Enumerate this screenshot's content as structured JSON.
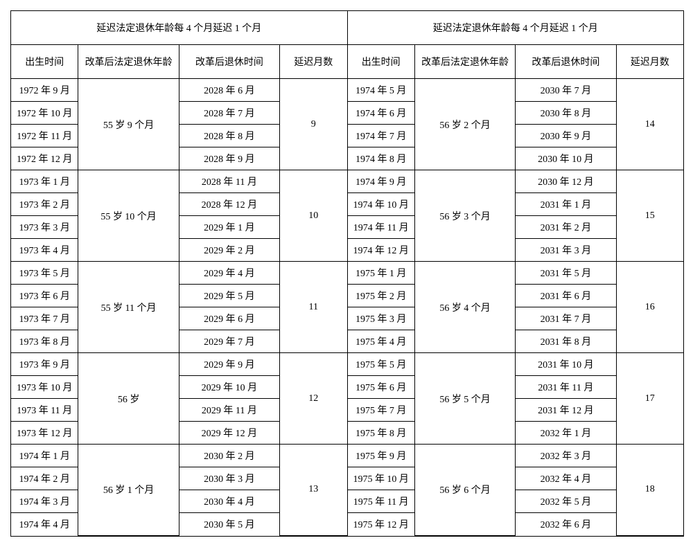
{
  "title": "延迟法定退休年龄每 4 个月延迟 1 个月",
  "columns": {
    "birth": "出生时间",
    "age": "改革后法定退休年龄",
    "retire": "改革后退休时间",
    "delay": "延迟月数"
  },
  "left_groups": [
    {
      "age": "55 岁 9 个月",
      "delay": "9",
      "rows": [
        {
          "birth": "1972 年 9 月",
          "retire": "2028 年 6 月"
        },
        {
          "birth": "1972 年 10 月",
          "retire": "2028 年 7 月"
        },
        {
          "birth": "1972 年 11 月",
          "retire": "2028 年 8 月"
        },
        {
          "birth": "1972 年 12 月",
          "retire": "2028 年 9 月"
        }
      ]
    },
    {
      "age": "55 岁 10 个月",
      "delay": "10",
      "rows": [
        {
          "birth": "1973 年 1 月",
          "retire": "2028 年 11 月"
        },
        {
          "birth": "1973 年 2 月",
          "retire": "2028 年 12 月"
        },
        {
          "birth": "1973 年 3 月",
          "retire": "2029 年 1 月"
        },
        {
          "birth": "1973 年 4 月",
          "retire": "2029 年 2 月"
        }
      ]
    },
    {
      "age": "55 岁 11 个月",
      "delay": "11",
      "rows": [
        {
          "birth": "1973 年 5 月",
          "retire": "2029 年 4 月"
        },
        {
          "birth": "1973 年 6 月",
          "retire": "2029 年 5 月"
        },
        {
          "birth": "1973 年 7 月",
          "retire": "2029 年 6 月"
        },
        {
          "birth": "1973 年 8 月",
          "retire": "2029 年 7 月"
        }
      ]
    },
    {
      "age": "56 岁",
      "delay": "12",
      "rows": [
        {
          "birth": "1973 年 9 月",
          "retire": "2029 年 9 月"
        },
        {
          "birth": "1973 年 10 月",
          "retire": "2029 年 10 月"
        },
        {
          "birth": "1973 年 11 月",
          "retire": "2029 年 11 月"
        },
        {
          "birth": "1973 年 12 月",
          "retire": "2029 年 12 月"
        }
      ]
    },
    {
      "age": "56 岁 1 个月",
      "delay": "13",
      "rows": [
        {
          "birth": "1974 年 1 月",
          "retire": "2030 年 2 月"
        },
        {
          "birth": "1974 年 2 月",
          "retire": "2030 年 3 月"
        },
        {
          "birth": "1974 年 3 月",
          "retire": "2030 年 4 月"
        },
        {
          "birth": "1974 年 4 月",
          "retire": "2030 年 5 月"
        }
      ]
    }
  ],
  "right_groups": [
    {
      "age": "56 岁 2 个月",
      "delay": "14",
      "rows": [
        {
          "birth": "1974 年 5 月",
          "retire": "2030 年 7 月"
        },
        {
          "birth": "1974 年 6 月",
          "retire": "2030 年 8 月"
        },
        {
          "birth": "1974 年 7 月",
          "retire": "2030 年 9 月"
        },
        {
          "birth": "1974 年 8 月",
          "retire": "2030 年 10 月"
        }
      ]
    },
    {
      "age": "56 岁 3 个月",
      "delay": "15",
      "rows": [
        {
          "birth": "1974 年 9 月",
          "retire": "2030 年 12 月"
        },
        {
          "birth": "1974 年 10 月",
          "retire": "2031 年 1 月"
        },
        {
          "birth": "1974 年 11 月",
          "retire": "2031 年 2 月"
        },
        {
          "birth": "1974 年 12 月",
          "retire": "2031 年 3 月"
        }
      ]
    },
    {
      "age": "56 岁 4 个月",
      "delay": "16",
      "rows": [
        {
          "birth": "1975 年 1 月",
          "retire": "2031 年 5 月"
        },
        {
          "birth": "1975 年 2 月",
          "retire": "2031 年 6 月"
        },
        {
          "birth": "1975 年 3 月",
          "retire": "2031 年 7 月"
        },
        {
          "birth": "1975 年 4 月",
          "retire": "2031 年 8 月"
        }
      ]
    },
    {
      "age": "56 岁 5 个月",
      "delay": "17",
      "rows": [
        {
          "birth": "1975 年 5 月",
          "retire": "2031 年 10 月"
        },
        {
          "birth": "1975 年 6 月",
          "retire": "2031 年 11 月"
        },
        {
          "birth": "1975 年 7 月",
          "retire": "2031 年 12 月"
        },
        {
          "birth": "1975 年 8 月",
          "retire": "2032 年 1 月"
        }
      ]
    },
    {
      "age": "56 岁 6 个月",
      "delay": "18",
      "rows": [
        {
          "birth": "1975 年 9 月",
          "retire": "2032 年 3 月"
        },
        {
          "birth": "1975 年 10 月",
          "retire": "2032 年 4 月"
        },
        {
          "birth": "1975 年 11 月",
          "retire": "2032 年 5 月"
        },
        {
          "birth": "1975 年 12 月",
          "retire": "2032 年 6 月"
        }
      ]
    }
  ]
}
